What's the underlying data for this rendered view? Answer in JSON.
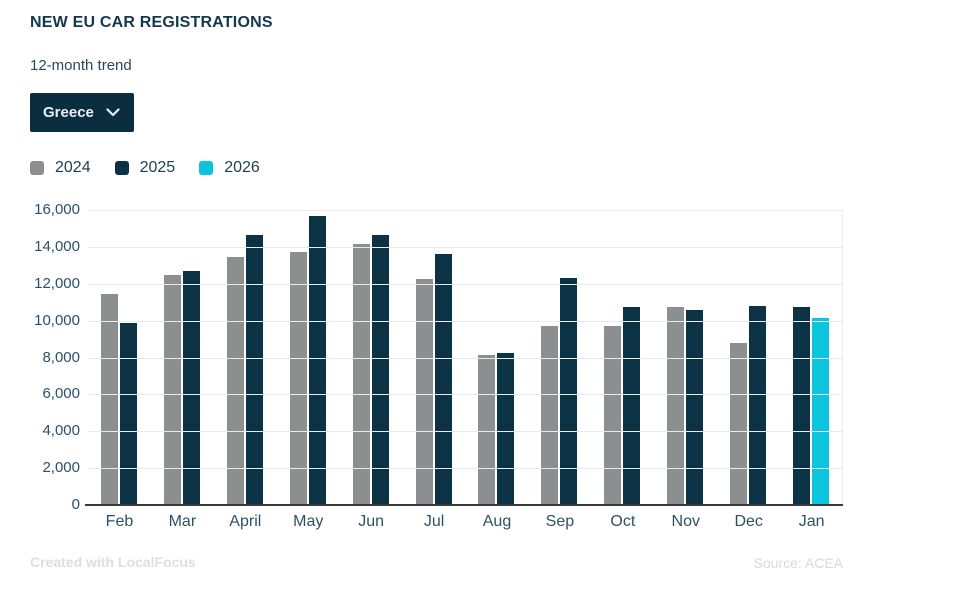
{
  "header": {
    "title": "NEW EU CAR REGISTRATIONS",
    "subtitle": "12-month trend"
  },
  "country_selector": {
    "selected": "Greece"
  },
  "footer": {
    "credit": "Created with LocalFocus",
    "source": "Source: ACEA"
  },
  "chart_data": {
    "type": "bar",
    "title": "NEW EU CAR REGISTRATIONS",
    "subtitle": "12-month trend",
    "categories": [
      "Feb",
      "Mar",
      "April",
      "May",
      "Jun",
      "Jul",
      "Aug",
      "Sep",
      "Oct",
      "Nov",
      "Dec",
      "Jan"
    ],
    "series": [
      {
        "name": "2024",
        "values": [
          11450,
          12500,
          13450,
          13700,
          14150,
          12250,
          8150,
          9700,
          9700,
          10750,
          8800,
          null
        ]
      },
      {
        "name": "2025",
        "values": [
          9850,
          12700,
          14650,
          15650,
          14650,
          13600,
          8250,
          12300,
          10750,
          10550,
          10800,
          10750
        ]
      },
      {
        "name": "2026",
        "values": [
          null,
          null,
          null,
          null,
          null,
          null,
          null,
          null,
          null,
          null,
          null,
          10150
        ]
      }
    ],
    "colors": {
      "2024": "#8b8f90",
      "2025": "#0c3245",
      "2026": "#0cc4de"
    },
    "ylim": [
      0,
      16000
    ],
    "yticks": [
      {
        "value": 0,
        "label": "0"
      },
      {
        "value": 2000,
        "label": "2,000"
      },
      {
        "value": 4000,
        "label": "4,000"
      },
      {
        "value": 6000,
        "label": "6,000"
      },
      {
        "value": 8000,
        "label": "8,000"
      },
      {
        "value": 10000,
        "label": "10,000"
      },
      {
        "value": 12000,
        "label": "12,000"
      },
      {
        "value": 14000,
        "label": "14,000"
      },
      {
        "value": 16000,
        "label": "16,000"
      }
    ],
    "grid": true,
    "legend_position": "top-left",
    "xlabel": "",
    "ylabel": ""
  }
}
